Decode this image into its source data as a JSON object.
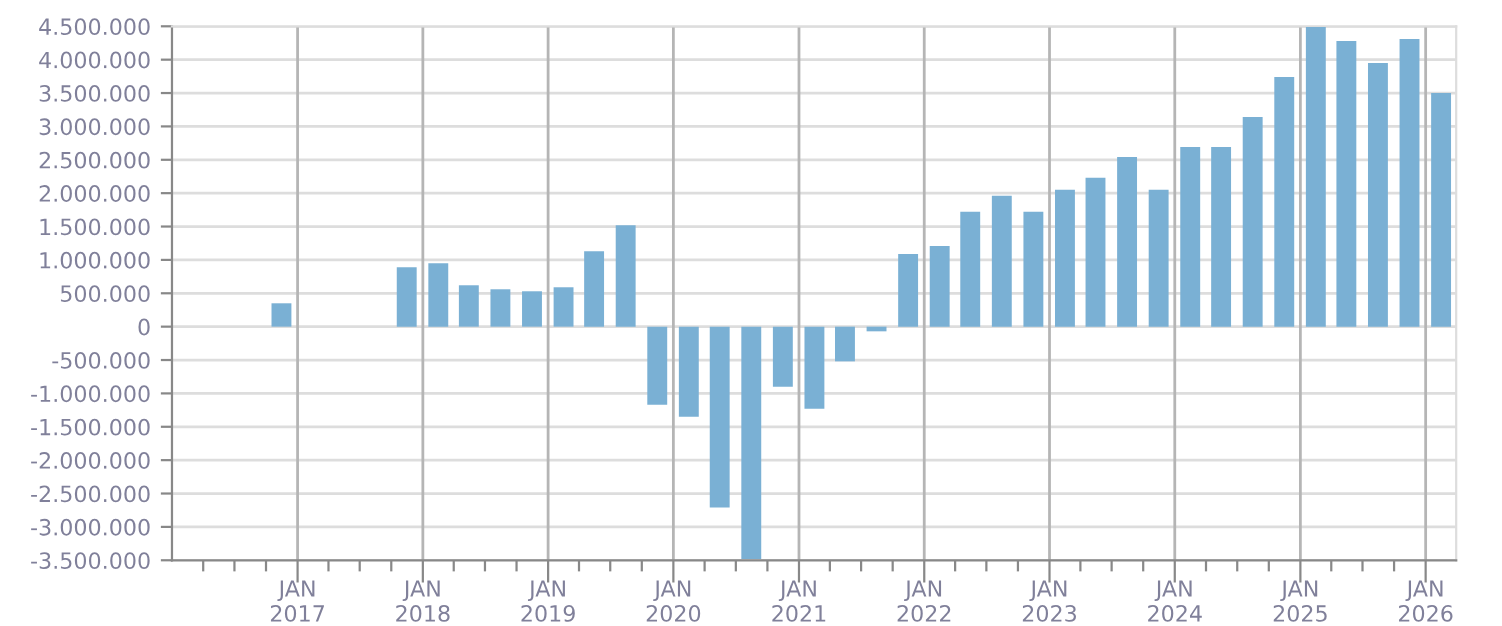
{
  "chart_data": {
    "type": "bar",
    "color": "#7ab0d4",
    "grid": true,
    "x": [
      "2016-11-15",
      "2017-11-15",
      "2018-02-15",
      "2018-05-15",
      "2018-08-15",
      "2018-11-15",
      "2019-02-15",
      "2019-05-15",
      "2019-08-15",
      "2019-11-15",
      "2020-02-15",
      "2020-05-15",
      "2020-08-15",
      "2020-11-15",
      "2021-02-15",
      "2021-05-15",
      "2021-08-15",
      "2021-11-15",
      "2022-02-15",
      "2022-05-15",
      "2022-08-15",
      "2022-11-15",
      "2023-02-15",
      "2023-05-15",
      "2023-08-15",
      "2023-11-15",
      "2024-02-15",
      "2024-05-15",
      "2024-08-15",
      "2024-11-15",
      "2025-02-15",
      "2025-05-15",
      "2025-08-15",
      "2025-11-15",
      "2026-02-15"
    ],
    "values": [
      350000,
      890000,
      950000,
      620000,
      560000,
      530000,
      590000,
      1130000,
      1520000,
      -1170000,
      -1350000,
      -2710000,
      -3480000,
      -900000,
      -1230000,
      -520000,
      -70000,
      1090000,
      1210000,
      1720000,
      1960000,
      1720000,
      2050000,
      2230000,
      2540000,
      2050000,
      2690000,
      2690000,
      3140000,
      3740000,
      4490000,
      4280000,
      3950000,
      4310000,
      3500000
    ],
    "xlim": [
      "2016-01-01",
      "2026-03-31"
    ],
    "xticks": [
      {
        "value": "2016-04-01",
        "label": null
      },
      {
        "value": "2016-07-01",
        "label": null
      },
      {
        "value": "2016-10-01",
        "label": null
      },
      {
        "value": "2017-01-01",
        "label": "JAN\n2017"
      },
      {
        "value": "2017-04-01",
        "label": null
      },
      {
        "value": "2017-07-01",
        "label": null
      },
      {
        "value": "2017-10-01",
        "label": null
      },
      {
        "value": "2018-01-01",
        "label": "JAN\n2018"
      },
      {
        "value": "2018-04-01",
        "label": null
      },
      {
        "value": "2018-07-01",
        "label": null
      },
      {
        "value": "2018-10-01",
        "label": null
      },
      {
        "value": "2019-01-01",
        "label": "JAN\n2019"
      },
      {
        "value": "2019-04-01",
        "label": null
      },
      {
        "value": "2019-07-01",
        "label": null
      },
      {
        "value": "2019-10-01",
        "label": null
      },
      {
        "value": "2020-01-01",
        "label": "JAN\n2020"
      },
      {
        "value": "2020-04-01",
        "label": null
      },
      {
        "value": "2020-07-01",
        "label": null
      },
      {
        "value": "2020-10-01",
        "label": null
      },
      {
        "value": "2021-01-01",
        "label": "JAN\n2021"
      },
      {
        "value": "2021-04-01",
        "label": null
      },
      {
        "value": "2021-07-01",
        "label": null
      },
      {
        "value": "2021-10-01",
        "label": null
      },
      {
        "value": "2022-01-01",
        "label": "JAN\n2022"
      },
      {
        "value": "2022-04-01",
        "label": null
      },
      {
        "value": "2022-07-01",
        "label": null
      },
      {
        "value": "2022-10-01",
        "label": null
      },
      {
        "value": "2023-01-01",
        "label": "JAN\n2023"
      },
      {
        "value": "2023-04-01",
        "label": null
      },
      {
        "value": "2023-07-01",
        "label": null
      },
      {
        "value": "2023-10-01",
        "label": null
      },
      {
        "value": "2024-01-01",
        "label": "JAN\n2024"
      },
      {
        "value": "2024-04-01",
        "label": null
      },
      {
        "value": "2024-07-01",
        "label": null
      },
      {
        "value": "2024-10-01",
        "label": null
      },
      {
        "value": "2025-01-01",
        "label": "JAN\n2025"
      },
      {
        "value": "2025-04-01",
        "label": null
      },
      {
        "value": "2025-07-01",
        "label": null
      },
      {
        "value": "2025-10-01",
        "label": null
      },
      {
        "value": "2026-01-01",
        "label": "JAN\n2026"
      }
    ],
    "ylim": [
      -3500000,
      4500000
    ],
    "yticks": [
      {
        "value": -3500000,
        "label": "-3.500.000"
      },
      {
        "value": -3000000,
        "label": "-3.000.000"
      },
      {
        "value": -2500000,
        "label": "-2.500.000"
      },
      {
        "value": -2000000,
        "label": "-2.000.000"
      },
      {
        "value": -1500000,
        "label": "-1.500.000"
      },
      {
        "value": -1000000,
        "label": "-1.000.000"
      },
      {
        "value": -500000,
        "label": "-500.000"
      },
      {
        "value": 0,
        "label": "0"
      },
      {
        "value": 500000,
        "label": "500.000"
      },
      {
        "value": 1000000,
        "label": "1.000.000"
      },
      {
        "value": 1500000,
        "label": "1.500.000"
      },
      {
        "value": 2000000,
        "label": "2.000.000"
      },
      {
        "value": 2500000,
        "label": "2.500.000"
      },
      {
        "value": 3000000,
        "label": "3.000.000"
      },
      {
        "value": 3500000,
        "label": "3.500.000"
      },
      {
        "value": 4000000,
        "label": "4.000.000"
      },
      {
        "value": 4500000,
        "label": "4.500.000"
      }
    ]
  }
}
